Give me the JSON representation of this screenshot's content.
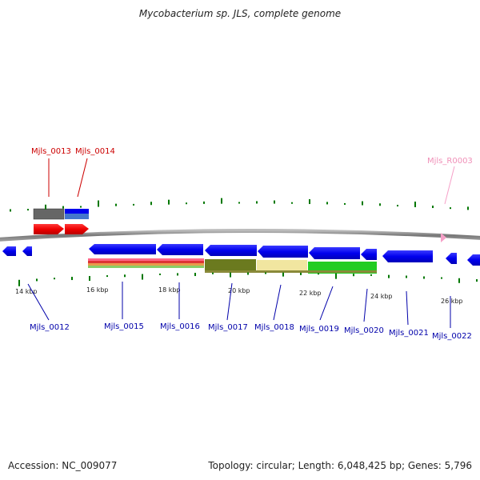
{
  "title": "Mycobacterium sp. JLS, complete genome",
  "footer": {
    "accession": "Accession: NC_009077",
    "summary": "Topology: circular; Length: 6,048,425 bp; Genes: 5,796"
  },
  "colors": {
    "red_label": "#cc0000",
    "blue_label": "#0000aa",
    "pink_label": "#f090b8",
    "gene_blue": "#0000ee",
    "gene_red": "#ee0000",
    "backbone": "#888888",
    "tick_green": "#006600"
  },
  "scale_labels": [
    "14 kbp",
    "16 kbp",
    "18 kbp",
    "20 kbp",
    "22 kbp",
    "24 kbp",
    "26 kbp"
  ],
  "top_labels": [
    {
      "text": "Mjls_0013",
      "color": "red"
    },
    {
      "text": "Mjls_0014",
      "color": "red"
    },
    {
      "text": "Mjls_R0003",
      "color": "pink"
    }
  ],
  "bottom_labels": [
    "Mjls_0012",
    "Mjls_0015",
    "Mjls_0016",
    "Mjls_0017",
    "Mjls_0018",
    "Mjls_0019",
    "Mjls_0020",
    "Mjls_0021",
    "Mjls_0022"
  ]
}
